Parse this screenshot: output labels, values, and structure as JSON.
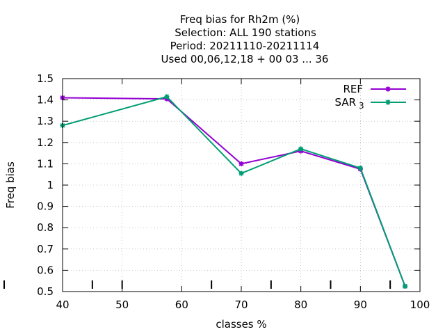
{
  "chart_data": {
    "type": "line",
    "title_lines": [
      "Freq bias  for Rh2m (%)",
      "Selection: ALL    190 stations",
      "Period: 20211110-20211114",
      "Used  00,06,12,18 + 00 03 ... 36"
    ],
    "xlabel": "classes %",
    "ylabel": "Freq bias",
    "xlim": [
      40,
      100
    ],
    "ylim": [
      0.5,
      1.5
    ],
    "x_ticks": [
      40,
      50,
      60,
      70,
      80,
      90,
      100
    ],
    "x_tick_labels": [
      "40",
      "50",
      "60",
      "70",
      "80",
      "90",
      "100"
    ],
    "y_ticks": [
      0.5,
      0.6,
      0.7,
      0.8,
      0.9,
      1.0,
      1.1,
      1.2,
      1.3,
      1.4,
      1.5
    ],
    "y_tick_labels": [
      "0.5",
      "0.6",
      "0.7",
      "0.8",
      "0.9",
      "1",
      "1.1",
      "1.2",
      "1.3",
      "1.4",
      "1.5"
    ],
    "grid": true,
    "legend_position": "top-right",
    "series": [
      {
        "name": "REF",
        "color": "#9400d3",
        "x": [
          40,
          57.5,
          70,
          80,
          90,
          97.5
        ],
        "values": [
          1.41,
          1.405,
          1.1,
          1.16,
          1.075,
          0.525
        ]
      },
      {
        "name": "SAR",
        "name_subscript": "3",
        "color": "#009e73",
        "x": [
          40,
          57.5,
          70,
          80,
          90,
          97.5
        ],
        "values": [
          1.28,
          1.415,
          1.055,
          1.17,
          1.08,
          0.525
        ]
      }
    ],
    "extra_marks_x": [
      45,
      50,
      65,
      75,
      85,
      95
    ]
  }
}
